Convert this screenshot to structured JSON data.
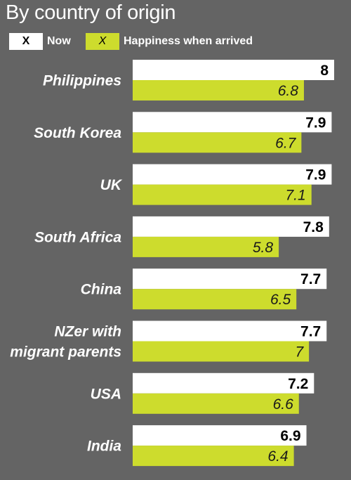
{
  "chart_data": {
    "type": "bar",
    "orientation": "horizontal",
    "title": "By country of origin",
    "categories": [
      "Philippines",
      "South Korea",
      "UK",
      "South Africa",
      "China",
      "NZer with migrant parents",
      "USA",
      "India"
    ],
    "category_lines": [
      [
        "Philippines"
      ],
      [
        "South Korea"
      ],
      [
        "UK"
      ],
      [
        "South Africa"
      ],
      [
        "China"
      ],
      [
        "NZer with",
        "migrant parents"
      ],
      [
        "USA"
      ],
      [
        "India"
      ]
    ],
    "series": [
      {
        "name": "Now",
        "legend_marker": "X",
        "color": "#ffffff",
        "values": [
          8,
          7.9,
          7.9,
          7.8,
          7.7,
          7.7,
          7.2,
          6.9
        ]
      },
      {
        "name": "Happiness when arrived",
        "legend_marker": "X",
        "color": "#cddc2d",
        "values": [
          6.8,
          6.7,
          7.1,
          5.8,
          6.5,
          7,
          6.6,
          6.4
        ]
      }
    ],
    "value_labels": {
      "Now": [
        "8",
        "7.9",
        "7.9",
        "7.8",
        "7.7",
        "7.7",
        "7.2",
        "6.9"
      ],
      "Happiness when arrived": [
        "6.8",
        "6.7",
        "7.1",
        "5.8",
        "6.5",
        "7",
        "6.6",
        "6.4"
      ]
    },
    "xlim": [
      0,
      8
    ],
    "grid": false,
    "legend_position": "top-left",
    "background_color": "#646464"
  }
}
